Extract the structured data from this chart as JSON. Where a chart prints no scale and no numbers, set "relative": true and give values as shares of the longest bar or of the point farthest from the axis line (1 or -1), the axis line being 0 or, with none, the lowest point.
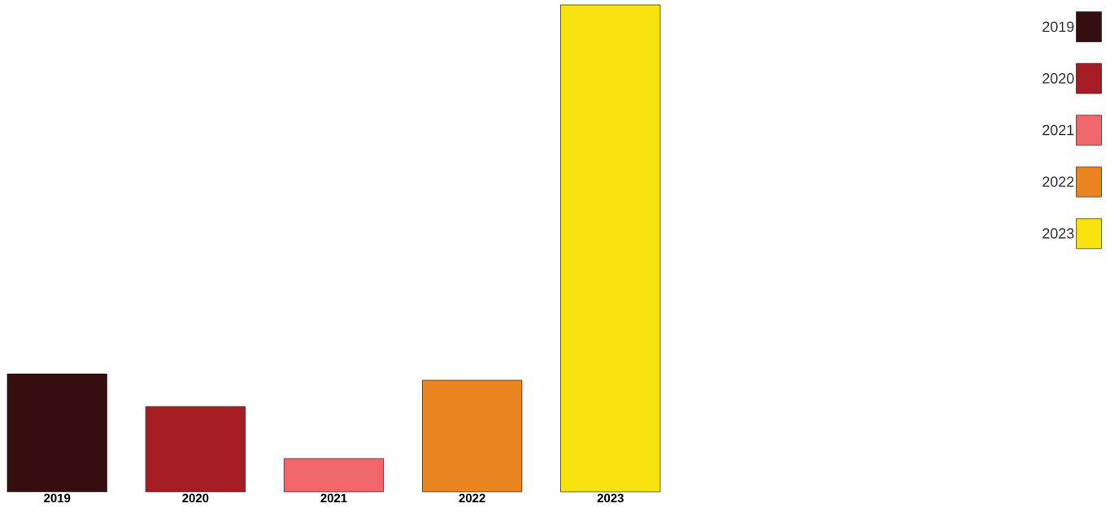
{
  "chart_data": {
    "type": "bar",
    "relative": true,
    "categories": [
      "2019",
      "2020",
      "2021",
      "2022",
      "2023"
    ],
    "series": [
      {
        "name": "2019",
        "color": "#350e10",
        "values": [
          0.242,
          null,
          null,
          null,
          null
        ]
      },
      {
        "name": "2020",
        "color": "#a51d23",
        "values": [
          null,
          0.175,
          null,
          null,
          null
        ]
      },
      {
        "name": "2021",
        "color": "#f1666a",
        "values": [
          null,
          null,
          0.068,
          null,
          null
        ]
      },
      {
        "name": "2022",
        "color": "#ea8522",
        "values": [
          null,
          null,
          null,
          0.229,
          null
        ]
      },
      {
        "name": "2023",
        "color": "#f7e40e",
        "values": [
          null,
          null,
          null,
          null,
          1
        ]
      }
    ],
    "legend": "top right"
  }
}
